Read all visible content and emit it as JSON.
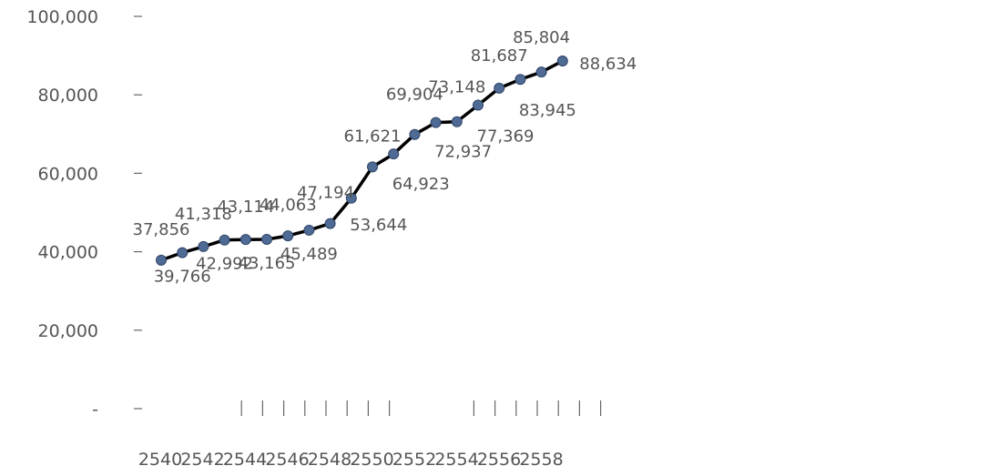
{
  "chart_data": {
    "type": "line",
    "title": "",
    "xlabel": "",
    "ylabel": "",
    "x": [
      2540,
      2541,
      2542,
      2543,
      2544,
      2545,
      2546,
      2547,
      2548,
      2549,
      2550,
      2551,
      2552,
      2553,
      2554,
      2555,
      2556,
      2557,
      2558,
      2559
    ],
    "x_tick_labels": [
      "2540",
      "2542",
      "2544",
      "2546",
      "2548",
      "2550",
      "2552",
      "2554",
      "2556",
      "2558"
    ],
    "y_tick_labels": [
      "-",
      "20,000",
      "40,000",
      "60,000",
      "80,000",
      "100,000"
    ],
    "ylim": [
      0,
      100000
    ],
    "grid": false,
    "legend": "none",
    "series": [
      {
        "values": [
          37856,
          39766,
          41318,
          42992,
          43114,
          43165,
          44063,
          45489,
          47194,
          53644,
          61621,
          64923,
          69904,
          72937,
          73148,
          77369,
          81687,
          83945,
          85804,
          88634
        ],
        "labels": [
          "37,856",
          "39,766",
          "41,318",
          "42,992",
          "43,114",
          "43,165",
          "44,063",
          "45,489",
          "47,194",
          "53,644",
          "61,621",
          "64,923",
          "69,904",
          "72,937",
          "73,148",
          "77,369",
          "81,687",
          "83,945",
          "85,804",
          "88,634"
        ],
        "line_color": "#000000",
        "marker_color": "#4F6A94"
      }
    ]
  }
}
